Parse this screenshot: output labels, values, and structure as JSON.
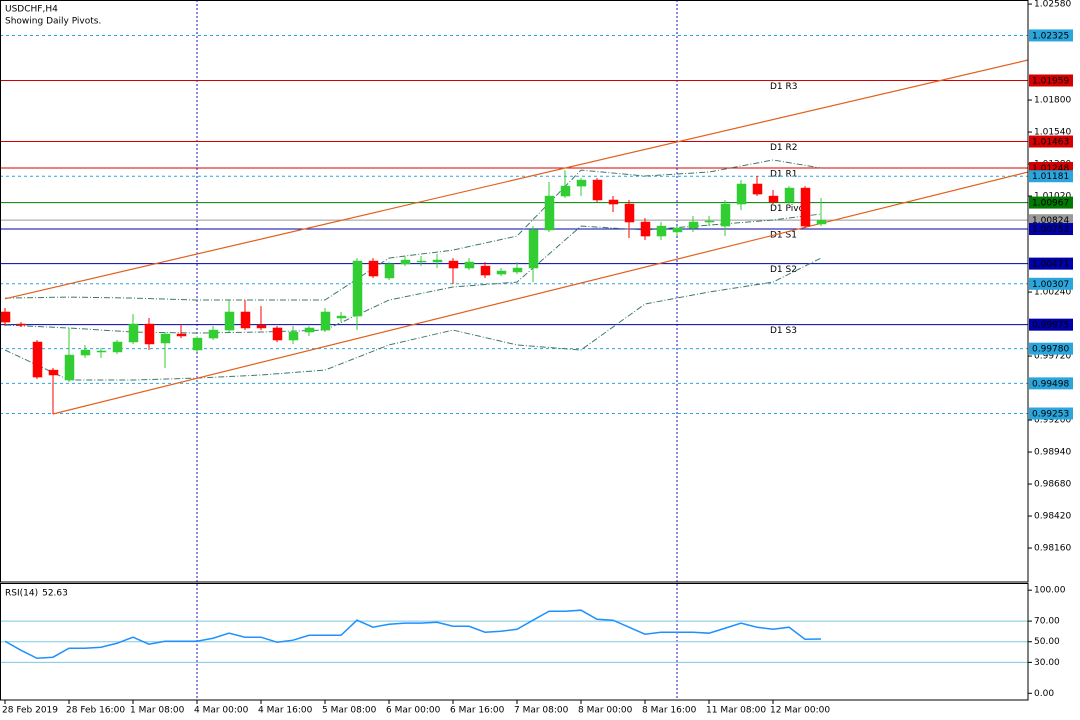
{
  "chart_data": [
    {
      "type": "candlestick",
      "title": "USDCHF,H4",
      "subtitle": "Showing Daily Pivots.",
      "categories": [
        "28 Feb 2019",
        null,
        null,
        null,
        "28 Feb 16:00",
        null,
        null,
        null,
        "1 Mar 08:00",
        null,
        null,
        null,
        "4 Mar 00:00",
        null,
        null,
        null,
        "4 Mar 16:00",
        null,
        null,
        null,
        "5 Mar 08:00",
        null,
        null,
        null,
        "6 Mar 00:00",
        null,
        null,
        null,
        "6 Mar 16:00",
        null,
        null,
        null,
        "7 Mar 08:00",
        null,
        null,
        null,
        "8 Mar 00:00",
        null,
        null,
        null,
        "8 Mar 16:00",
        null,
        null,
        null,
        "11 Mar 08:00",
        null,
        null,
        null,
        "12 Mar 00:00",
        null,
        null,
        null
      ],
      "open": [
        1.00078,
        0.9998,
        0.99834,
        0.99606,
        0.99525,
        0.99728,
        0.99753,
        0.99753,
        0.99834,
        0.9998,
        0.99826,
        0.99899,
        0.99769,
        0.99866,
        0.99931,
        1.00078,
        0.99972,
        0.99948,
        0.9985,
        0.99915,
        0.99931,
        1.00029,
        1.00045,
        1.00492,
        1.00354,
        1.00468,
        1.00484,
        1.00484,
        1.00492,
        1.00435,
        1.00451,
        1.00386,
        1.00403,
        1.00435,
        1.00744,
        1.0102,
        1.01101,
        1.0115,
        1.00988,
        1.00955,
        1.00809,
        1.00695,
        1.00728,
        1.0076,
        1.00809,
        1.00776,
        1.00955,
        1.01118,
        1.0102,
        1.00971,
        1.01085,
        1.00793
      ],
      "high": [
        1.0011,
        0.99996,
        0.9985,
        0.99623,
        0.99948,
        0.9981,
        0.99785,
        0.9985,
        1.00061,
        1.00029,
        0.99915,
        0.9998,
        0.99883,
        0.99964,
        1.00175,
        1.00175,
        1.00126,
        0.99964,
        0.99964,
        0.99964,
        1.0011,
        1.00078,
        1.00516,
        1.00516,
        1.00484,
        1.00533,
        1.00533,
        1.00549,
        1.00516,
        1.00516,
        1.00484,
        1.00435,
        1.00484,
        1.00776,
        1.01134,
        1.01231,
        1.01166,
        1.01166,
        1.0102,
        1.00988,
        1.00841,
        1.00809,
        1.00776,
        1.00858,
        1.00858,
        1.00988,
        1.0115,
        1.01183,
        1.01069,
        1.01101,
        1.01101,
        1.01004
      ],
      "low": [
        0.99964,
        0.99956,
        0.99533,
        0.99249,
        0.99509,
        0.99704,
        0.99704,
        0.99736,
        0.99818,
        0.99769,
        0.99623,
        0.99866,
        0.99753,
        0.9985,
        0.99915,
        0.99931,
        0.99931,
        0.99834,
        0.99818,
        0.99883,
        0.99915,
        0.99996,
        0.99931,
        1.00354,
        1.00338,
        1.00451,
        1.00451,
        1.00435,
        1.00305,
        1.00419,
        1.00354,
        1.0037,
        1.00386,
        1.00321,
        1.00728,
        1.01004,
        1.0102,
        1.00971,
        1.0089,
        1.00679,
        1.00663,
        1.00663,
        1.00695,
        1.00728,
        1.00776,
        1.00695,
        1.00906,
        1.0102,
        1.00955,
        1.00955,
        1.0076,
        1.00776
      ],
      "close": [
        0.99996,
        0.99972,
        0.99549,
        0.99566,
        0.99728,
        0.99769,
        0.99761,
        0.99834,
        0.9998,
        0.99818,
        0.99899,
        0.99883,
        0.99866,
        0.99931,
        1.00078,
        0.99948,
        0.99948,
        0.9985,
        0.99915,
        0.99948,
        1.00078,
        1.00045,
        1.00492,
        1.0037,
        1.00468,
        1.005,
        1.00492,
        1.005,
        1.00435,
        1.00484,
        1.00378,
        1.00411,
        1.00435,
        1.00744,
        1.0102,
        1.01101,
        1.0115,
        1.00988,
        1.00955,
        1.00809,
        1.00695,
        1.00776,
        1.0076,
        1.00809,
        1.00817,
        1.00955,
        1.01118,
        1.01036,
        1.00971,
        1.01085,
        1.00776,
        1.00824
      ],
      "up_color": "#32cd32",
      "down_color": "#ff0000",
      "bands": {
        "color": "#3d7a68",
        "x": [
          0,
          4,
          8,
          12,
          16,
          20,
          24,
          28,
          32,
          36,
          40,
          44,
          48,
          51
        ],
        "upper": [
          1.00191,
          1.00199,
          1.00191,
          1.00175,
          1.00175,
          1.00175,
          1.00516,
          1.00581,
          1.00695,
          1.01231,
          1.01183,
          1.01215,
          1.01313,
          1.01248
        ],
        "middle": [
          0.99972,
          0.99948,
          0.99915,
          0.99907,
          0.99915,
          0.99931,
          1.00175,
          1.00281,
          1.00321,
          1.00776,
          1.00744,
          1.00784,
          1.00825,
          1.00874
        ],
        "lower": [
          0.99769,
          0.99525,
          0.99525,
          0.99541,
          0.99566,
          0.99606,
          0.9981,
          0.99931,
          0.9981,
          0.99769,
          1.00143,
          1.0024,
          1.00321,
          1.00516
        ]
      },
      "trendlines": [
        {
          "color": "#e2601e",
          "x": [
            0,
            64
          ],
          "values": [
            1.00185,
            1.02127
          ]
        },
        {
          "color": "#e2601e",
          "x": [
            3,
            64
          ],
          "values": [
            0.99249,
            1.01217
          ]
        }
      ],
      "separators": [
        12,
        42
      ],
      "levels": [
        {
          "value": 1.02325,
          "label": "1.02325",
          "color": "#2aa6dc",
          "style": "dashed"
        },
        {
          "value": 1.01959,
          "label": "1.01959",
          "name": "D1 R3",
          "color": "#d40000",
          "style": "solid"
        },
        {
          "value": 1.01463,
          "label": "1.01463",
          "name": "D1 R2",
          "color": "#d40000",
          "style": "solid"
        },
        {
          "value": 1.01248,
          "label": "1.01248",
          "name": "D1 R1",
          "color": "#d40000",
          "style": "solid"
        },
        {
          "value": 1.01181,
          "label": "1.01181",
          "color": "#2aa6dc",
          "style": "dashed"
        },
        {
          "value": 1.00967,
          "label": "1.00967",
          "name": "D1 Pivot",
          "color": "#007a00",
          "style": "solid"
        },
        {
          "value": 1.00824,
          "label": "1.00824",
          "color": "#9a9a9a",
          "style": "solid"
        },
        {
          "value": 1.00752,
          "label": "1.00752",
          "name": "D1 S1",
          "color": "#0000a8",
          "style": "solid"
        },
        {
          "value": 1.00471,
          "label": "1.00471",
          "name": "D1 S2",
          "color": "#0000a8",
          "style": "solid"
        },
        {
          "value": 1.00307,
          "label": "1.00307",
          "color": "#2aa6dc",
          "style": "dashed"
        },
        {
          "value": 0.99975,
          "label": "0.99975",
          "name": "D1 S3",
          "color": "#0000a8",
          "style": "solid"
        },
        {
          "value": 0.9978,
          "label": "0.99780",
          "color": "#2aa6dc",
          "style": "dashed"
        },
        {
          "value": 0.99498,
          "label": "0.99498",
          "color": "#2aa6dc",
          "style": "dashed"
        },
        {
          "value": 0.99253,
          "label": "0.99253",
          "color": "#2aa6dc",
          "style": "dashed"
        }
      ],
      "ylim": [
        0.97884,
        1.02613
      ],
      "yticks": [
        {
          "value": 1.0258,
          "label": "1.02580"
        },
        {
          "value": 1.018,
          "label": "1.01800"
        },
        {
          "value": 1.0154,
          "label": "1.01540"
        },
        {
          "value": 1.0128,
          "label": "1.01280"
        },
        {
          "value": 1.0102,
          "label": "1.01020"
        },
        {
          "value": 1.0024,
          "label": "1.00240"
        },
        {
          "value": 0.9972,
          "label": "0.99720"
        },
        {
          "value": 0.992,
          "label": "0.99200"
        },
        {
          "value": 0.9894,
          "label": "0.98940"
        },
        {
          "value": 0.9868,
          "label": "0.98680"
        },
        {
          "value": 0.9842,
          "label": "0.98420"
        },
        {
          "value": 0.9816,
          "label": "0.98160"
        }
      ]
    },
    {
      "type": "line",
      "title": "RSI(14)",
      "color": "#1e90ff",
      "level_color": "#7ec8e3",
      "values": [
        50.5,
        41.7,
        34,
        35,
        43.7,
        43.7,
        44.7,
        48.5,
        54.4,
        47.6,
        50.5,
        50.5,
        50.5,
        53.4,
        58.3,
        54.4,
        54.4,
        49.5,
        51.5,
        56.3,
        56.3,
        56.3,
        70.9,
        64.1,
        67,
        68,
        68,
        68.9,
        65,
        65,
        59.2,
        60.2,
        62.1,
        70.9,
        79.6,
        79.6,
        80.6,
        71.8,
        70.9,
        64.1,
        57.3,
        59.2,
        59.2,
        59.2,
        58.3,
        63.1,
        68,
        64.1,
        62.1,
        64.1,
        52.4,
        52.63
      ],
      "levels": [
        70,
        50,
        30
      ],
      "ylim": [
        -6.5,
        106
      ],
      "yticks": [
        {
          "value": 100,
          "label": "100.00"
        },
        {
          "value": 70,
          "label": "70.00"
        },
        {
          "value": 50,
          "label": "50.00"
        },
        {
          "value": 30,
          "label": "30.00"
        },
        {
          "value": 0,
          "label": "0.00"
        }
      ]
    }
  ]
}
